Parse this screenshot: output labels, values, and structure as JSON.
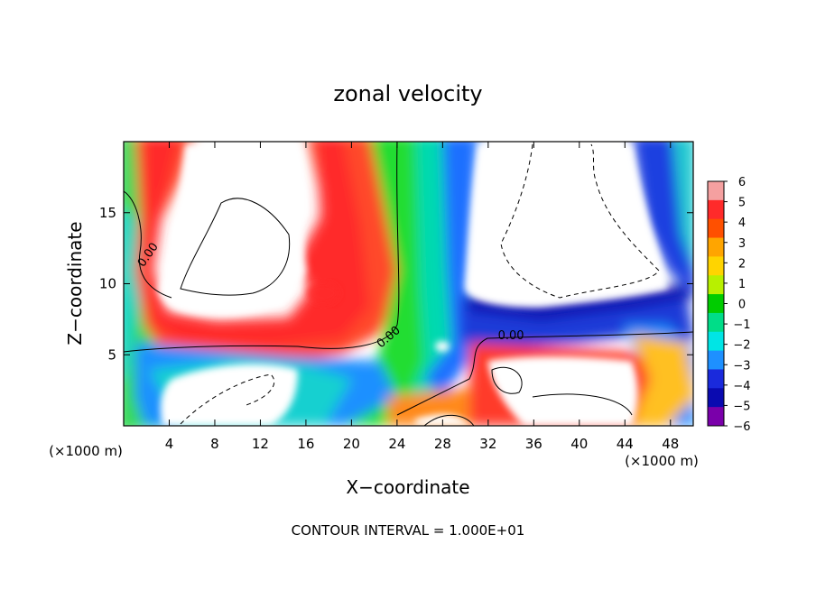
{
  "chart_data": {
    "type": "heatmap",
    "title": "zonal velocity",
    "xlabel": "X−coordinate",
    "ylabel": "Z−coordinate",
    "x_unit": "(×1000 m)",
    "y_unit": "(×1000 m)",
    "xlim": [
      0,
      50
    ],
    "ylim": [
      0,
      20
    ],
    "x_ticks": [
      4,
      8,
      12,
      16,
      20,
      24,
      28,
      32,
      36,
      40,
      44,
      48
    ],
    "x_tick_labels": [
      "4",
      "8",
      "12",
      "16",
      "20",
      "24",
      "28",
      "32",
      "36",
      "40",
      "44",
      "48"
    ],
    "y_ticks": [
      5,
      10,
      15
    ],
    "y_tick_labels": [
      "5",
      "10",
      "15"
    ],
    "colorbar": {
      "ticks": [
        6,
        5,
        4,
        3,
        2,
        1,
        0,
        -1,
        -2,
        -3,
        -4,
        -5,
        -6
      ],
      "tick_labels": [
        "6",
        "5",
        "4",
        "3",
        "2",
        "1",
        "0",
        "−1",
        "−2",
        "−3",
        "−4",
        "−5",
        "−6"
      ],
      "range": [
        -6,
        6
      ],
      "colors": [
        "#f5a0a0",
        "#ff2a2a",
        "#ff5000",
        "#ffa500",
        "#ffd400",
        "#b8f000",
        "#00cc00",
        "#00dd88",
        "#00e5e5",
        "#1e90ff",
        "#1a2adc",
        "#0a0ab0",
        "#7a00aa"
      ]
    },
    "contour_labels": [
      {
        "text": "0.00",
        "x": 2.2,
        "z": 12.0
      },
      {
        "text": "0.00",
        "x": 23.3,
        "z": 6.2
      },
      {
        "text": "0.00",
        "x": 34.0,
        "z": 6.3
      }
    ],
    "contour_interval_text": "CONTOUR INTERVAL = 1.000E+01",
    "grid": false
  }
}
